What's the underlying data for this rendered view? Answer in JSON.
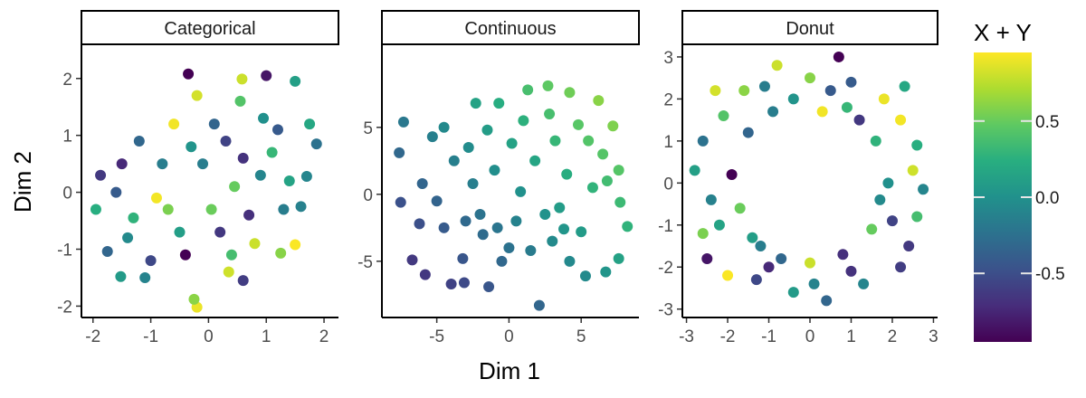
{
  "chart_data": {
    "type": "scatter",
    "xlabel": "Dim 1",
    "ylabel": "Dim 2",
    "legend": {
      "title": "X + Y",
      "placement": "right",
      "colormap": "viridis",
      "range": [
        -0.95,
        0.95
      ],
      "ticks": [
        -0.5,
        0.0,
        0.5
      ],
      "tick_labels": [
        "-0.5",
        "0.0",
        "0.5"
      ]
    },
    "panels": [
      {
        "title": "Categorical",
        "xlim": [
          -2.2,
          2.25
        ],
        "ylim": [
          -2.2,
          2.6
        ],
        "xticks": [
          -2,
          -1,
          0,
          1,
          2
        ],
        "xtick_labels": [
          "-2",
          "-1",
          "0",
          "1",
          "2"
        ],
        "yticks": [
          -2,
          -1,
          0,
          1,
          2
        ],
        "ytick_labels": [
          "-2",
          "-1",
          "0",
          "1",
          "2"
        ],
        "points": [
          [
            -0.35,
            2.08
          ],
          [
            0.58,
            1.99
          ],
          [
            1.0,
            2.05
          ],
          [
            1.5,
            1.95
          ],
          [
            1.87,
            0.85
          ],
          [
            1.7,
            0.28
          ],
          [
            -1.95,
            -0.3
          ],
          [
            -1.87,
            0.3
          ],
          [
            -1.75,
            -1.04
          ],
          [
            -1.52,
            -1.48
          ],
          [
            -0.2,
            -2.02
          ],
          [
            -0.25,
            -1.88
          ],
          [
            0.6,
            -1.55
          ],
          [
            1.5,
            -0.92
          ],
          [
            1.25,
            -1.07
          ],
          [
            -1.1,
            -1.5
          ],
          [
            0.35,
            -1.4
          ],
          [
            1.6,
            -0.25
          ],
          [
            -1.3,
            -0.45
          ],
          [
            0.1,
            1.2
          ],
          [
            0.45,
            0.1
          ],
          [
            -0.5,
            -0.7
          ],
          [
            1.1,
            0.7
          ],
          [
            -0.8,
            0.5
          ],
          [
            0.7,
            -0.4
          ],
          [
            -1.2,
            0.9
          ],
          [
            0.95,
            1.3
          ],
          [
            -0.4,
            -1.1
          ],
          [
            0.2,
            -0.7
          ],
          [
            1.3,
            -0.3
          ],
          [
            -0.9,
            -0.1
          ],
          [
            0.55,
            1.6
          ],
          [
            -1.6,
            0.0
          ],
          [
            -0.1,
            0.5
          ],
          [
            0.3,
            0.9
          ],
          [
            1.4,
            0.2
          ],
          [
            -0.6,
            1.2
          ],
          [
            0.8,
            -0.9
          ],
          [
            -1.4,
            -0.8
          ],
          [
            0.05,
            -0.3
          ],
          [
            1.75,
            1.2
          ],
          [
            -0.2,
            1.7
          ],
          [
            0.9,
            0.3
          ],
          [
            -1.0,
            -1.2
          ],
          [
            0.4,
            -1.1
          ],
          [
            -0.7,
            -0.3
          ],
          [
            1.2,
            1.1
          ],
          [
            -0.3,
            0.8
          ],
          [
            0.6,
            0.6
          ],
          [
            -1.5,
            0.5
          ]
        ]
      },
      {
        "title": "Continuous",
        "xlim": [
          -8.8,
          9.0
        ],
        "ylim": [
          -9.2,
          11.2
        ],
        "xticks": [
          -5,
          0,
          5
        ],
        "xtick_labels": [
          "-5",
          "0",
          "5"
        ],
        "yticks": [
          -5,
          0,
          5
        ],
        "ytick_labels": [
          "-5",
          "0",
          "5"
        ],
        "points": [
          [
            -7.5,
            -0.6
          ],
          [
            -6.7,
            -4.9
          ],
          [
            -5.8,
            -6.0
          ],
          [
            -4.0,
            -6.7
          ],
          [
            -3.1,
            -6.6
          ],
          [
            -1.4,
            -6.9
          ],
          [
            2.1,
            -8.3
          ],
          [
            5.3,
            -6.1
          ],
          [
            6.7,
            -5.8
          ],
          [
            7.6,
            -4.8
          ],
          [
            8.2,
            -2.4
          ],
          [
            7.7,
            -0.6
          ],
          [
            7.6,
            1.8
          ],
          [
            7.2,
            5.1
          ],
          [
            6.2,
            7.0
          ],
          [
            4.2,
            7.6
          ],
          [
            2.7,
            8.1
          ],
          [
            1.3,
            7.8
          ],
          [
            -0.7,
            6.8
          ],
          [
            -2.3,
            6.8
          ],
          [
            -5.3,
            4.3
          ],
          [
            -7.3,
            5.4
          ],
          [
            -7.6,
            3.1
          ],
          [
            -6.0,
            0.8
          ],
          [
            -4.5,
            -2.5
          ],
          [
            -3.2,
            -4.8
          ],
          [
            -1.8,
            -3.0
          ],
          [
            -0.5,
            -5.0
          ],
          [
            0.5,
            -2.0
          ],
          [
            1.5,
            -4.2
          ],
          [
            3.0,
            -3.5
          ],
          [
            4.2,
            -5.0
          ],
          [
            5.0,
            -2.8
          ],
          [
            3.5,
            -1.0
          ],
          [
            5.8,
            0.5
          ],
          [
            6.5,
            3.0
          ],
          [
            4.8,
            5.2
          ],
          [
            3.2,
            4.0
          ],
          [
            1.8,
            2.5
          ],
          [
            0.2,
            3.8
          ],
          [
            -1.0,
            1.8
          ],
          [
            -2.5,
            0.8
          ],
          [
            -3.8,
            2.5
          ],
          [
            -5.0,
            -0.5
          ],
          [
            -2.0,
            -1.5
          ],
          [
            0.8,
            0.2
          ],
          [
            2.5,
            -1.5
          ],
          [
            4.0,
            1.5
          ],
          [
            5.5,
            4.0
          ],
          [
            -1.5,
            4.8
          ],
          [
            -3.0,
            -2.0
          ],
          [
            1.0,
            5.5
          ],
          [
            2.8,
            6.0
          ],
          [
            -4.5,
            5.0
          ],
          [
            6.8,
            1.0
          ],
          [
            3.8,
            -2.6
          ],
          [
            -0.8,
            -2.5
          ],
          [
            -6.2,
            -2.2
          ],
          [
            -2.8,
            3.5
          ],
          [
            0.0,
            -4.0
          ]
        ]
      },
      {
        "title": "Donut",
        "xlim": [
          -3.1,
          3.1
        ],
        "ylim": [
          -3.2,
          3.3
        ],
        "xticks": [
          -3,
          -2,
          -1,
          0,
          1,
          2,
          3
        ],
        "xtick_labels": [
          "-3",
          "-2",
          "-1",
          "0",
          "1",
          "2",
          "3"
        ],
        "yticks": [
          -3,
          -2,
          -1,
          0,
          1,
          2,
          3
        ],
        "ytick_labels": [
          "-3",
          "-2",
          "-1",
          "0",
          "1",
          "2",
          "3"
        ],
        "points": [
          [
            0.7,
            3.0
          ],
          [
            -0.8,
            2.8
          ],
          [
            -2.5,
            -1.8
          ],
          [
            -2.8,
            0.3
          ],
          [
            -2.6,
            1.0
          ],
          [
            2.75,
            -0.15
          ],
          [
            2.6,
            0.9
          ],
          [
            2.4,
            -1.5
          ],
          [
            0.4,
            -2.8
          ],
          [
            -0.4,
            -2.6
          ],
          [
            1.8,
            2.0
          ],
          [
            -1.6,
            2.2
          ],
          [
            2.2,
            -2.0
          ],
          [
            -2.0,
            -2.2
          ],
          [
            0.0,
            2.5
          ],
          [
            0.1,
            -2.4
          ],
          [
            2.5,
            0.3
          ],
          [
            -2.4,
            -0.4
          ],
          [
            1.6,
            1.0
          ],
          [
            -1.5,
            1.2
          ],
          [
            1.5,
            -1.1
          ],
          [
            -1.4,
            -1.3
          ],
          [
            0.9,
            1.8
          ],
          [
            -0.9,
            1.7
          ],
          [
            0.8,
            -1.7
          ],
          [
            -0.7,
            -1.8
          ],
          [
            1.9,
            0.0
          ],
          [
            -1.9,
            0.2
          ],
          [
            1.2,
            1.5
          ],
          [
            -1.2,
            -1.5
          ],
          [
            2.2,
            1.5
          ],
          [
            -2.1,
            1.6
          ],
          [
            1.0,
            2.4
          ],
          [
            -1.1,
            2.3
          ],
          [
            2.0,
            -0.9
          ],
          [
            -2.2,
            -1.0
          ],
          [
            0.3,
            1.7
          ],
          [
            0.0,
            -1.9
          ],
          [
            1.7,
            -0.4
          ],
          [
            -1.7,
            -0.6
          ],
          [
            2.3,
            2.3
          ],
          [
            -2.3,
            2.2
          ],
          [
            1.3,
            -2.4
          ],
          [
            -1.3,
            -2.3
          ],
          [
            2.6,
            -0.8
          ],
          [
            -2.6,
            -1.2
          ],
          [
            0.5,
            2.2
          ],
          [
            -0.4,
            2.0
          ],
          [
            1.0,
            -2.1
          ],
          [
            -1.0,
            -2.0
          ]
        ]
      }
    ]
  }
}
